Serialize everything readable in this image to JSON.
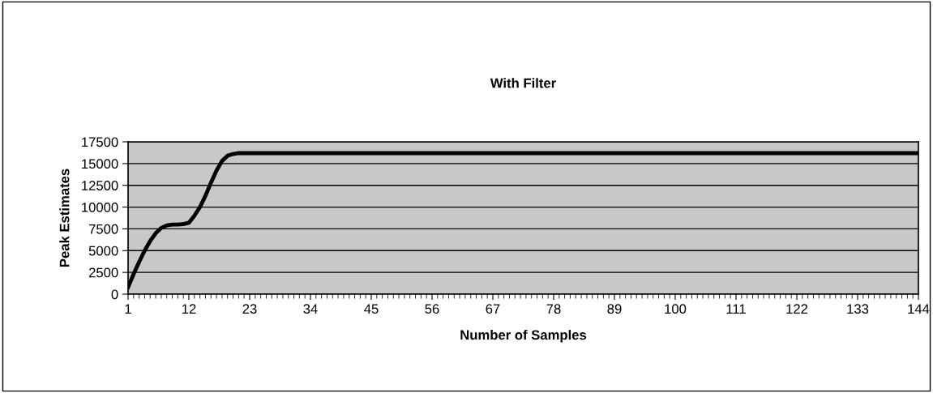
{
  "chart_data": {
    "type": "line",
    "title": "With Filter",
    "xlabel": "Number of Samples",
    "ylabel": "Peak Estimates",
    "series": [
      {
        "color": "#000000",
        "x": [
          1,
          2,
          3,
          4,
          5,
          6,
          7,
          8,
          9,
          10,
          11,
          12,
          13,
          14,
          15,
          16,
          17,
          18,
          19,
          20,
          21,
          22,
          24,
          144
        ],
        "values": [
          800,
          2300,
          3700,
          5000,
          6100,
          7000,
          7600,
          7900,
          8000,
          8000,
          8050,
          8200,
          9000,
          10000,
          11300,
          12800,
          14200,
          15300,
          15900,
          16100,
          16200,
          16200,
          16200,
          16200
        ]
      }
    ],
    "xlim": [
      1,
      144
    ],
    "xticks": [
      1,
      12,
      23,
      34,
      45,
      56,
      67,
      78,
      89,
      100,
      111,
      122,
      133,
      144
    ],
    "ylim": [
      0,
      17500
    ],
    "yticks": [
      0,
      2500,
      5000,
      7500,
      10000,
      12500,
      15000,
      17500
    ],
    "grid": "y",
    "legend": false,
    "marker": "none",
    "line_style": "solid"
  }
}
